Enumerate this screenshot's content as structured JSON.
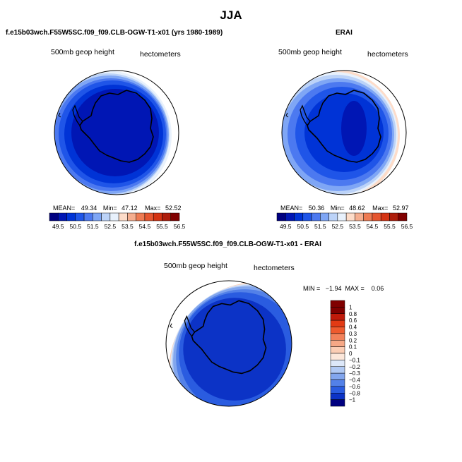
{
  "page": {
    "title": "JJA"
  },
  "colors": {
    "ramp": [
      "#000080",
      "#0016B4",
      "#0033D6",
      "#1F55E8",
      "#4C79F0",
      "#7FA6F5",
      "#BCD3F8",
      "#E8F1FC",
      "#FDDCC9",
      "#F5AE8F",
      "#EE7B53",
      "#E5552F",
      "#D43312",
      "#AE1D0B",
      "#800000"
    ],
    "coast": "#000000"
  },
  "panels": [
    {
      "id": "model",
      "title": "f.e15b03wch.F55W5SC.f09_f09.CLB-OGW-T1-x01 (yrs 1980-1989)",
      "variable": "500mb geop height",
      "units": "hectometers",
      "stats": {
        "mean_label": "MEAN=",
        "mean": "49.34",
        "min_label": "Min=",
        "min": "47.12",
        "max_label": "Max=",
        "max": "52.52"
      },
      "colorbar_labels": [
        "49.5",
        "50.5",
        "51.5",
        "52.5",
        "53.5",
        "54.5",
        "55.5",
        "56.5"
      ]
    },
    {
      "id": "obs",
      "title": "ERAI",
      "variable": "500mb geop height",
      "units": "hectometers",
      "stats": {
        "mean_label": "MEAN=",
        "mean": "50.36",
        "min_label": "Min=",
        "min": "48.62",
        "max_label": "Max=",
        "max": "52.97"
      },
      "colorbar_labels": [
        "49.5",
        "50.5",
        "51.5",
        "52.5",
        "53.5",
        "54.5",
        "55.5",
        "56.5"
      ]
    },
    {
      "id": "diff",
      "title": "f.e15b03wch.F55W5SC.f09_f09.CLB-OGW-T1-x01 - ERAI",
      "variable": "500mb geop height",
      "units": "hectometers",
      "stats_text": "MIN =   −1.94  MAX =    0.06",
      "colorbar_labels": [
        "1",
        "0.8",
        "0.6",
        "0.4",
        "0.3",
        "0.2",
        "0.1",
        "0",
        "−0.1",
        "−0.2",
        "−0.3",
        "−0.4",
        "−0.6",
        "−0.8",
        "−1"
      ],
      "colorbar_colors": [
        "#800000",
        "#C01A0A",
        "#E23A14",
        "#EE5A2E",
        "#F2815A",
        "#F6A886",
        "#FBCDB4",
        "#FCE7DA",
        "#DDE8F9",
        "#B0C9F4",
        "#82A6EE",
        "#5381E8",
        "#2A5CE0",
        "#0C33C6",
        "#000080"
      ]
    }
  ],
  "chart_data": [
    {
      "type": "heatmap",
      "title": "f.e15b03wch.F55W5SC.f09_f09.CLB-OGW-T1-x01 (yrs 1980-1989)",
      "projection": "polar-stereographic-south",
      "variable": "500mb geop height",
      "units": "hectometers",
      "mean": 49.34,
      "min": 47.12,
      "max": 52.52,
      "levels": [
        49,
        49.5,
        50,
        50.5,
        51,
        51.5,
        52,
        52.5,
        53,
        53.5,
        54,
        54.5,
        55,
        55.5,
        56,
        56.5
      ],
      "ring_values_center_to_edge": [
        49.0,
        49.5,
        50.0,
        50.5,
        51.0,
        51.5,
        52.0
      ]
    },
    {
      "type": "heatmap",
      "title": "ERAI",
      "projection": "polar-stereographic-south",
      "variable": "500mb geop height",
      "units": "hectometers",
      "mean": 50.36,
      "min": 48.62,
      "max": 52.97,
      "levels": [
        49,
        49.5,
        50,
        50.5,
        51,
        51.5,
        52,
        52.5,
        53,
        53.5,
        54,
        54.5,
        55,
        55.5,
        56,
        56.5
      ],
      "ring_values_center_to_edge": [
        49.0,
        49.5,
        50.0,
        50.5,
        51.0,
        51.5,
        52.0,
        52.5
      ]
    },
    {
      "type": "heatmap",
      "title": "f.e15b03wch.F55W5SC.f09_f09.CLB-OGW-T1-x01 - ERAI",
      "projection": "polar-stereographic-south",
      "variable": "500mb geop height",
      "units": "hectometers",
      "min": -1.94,
      "max": 0.06,
      "levels": [
        -1,
        -0.8,
        -0.6,
        -0.4,
        -0.3,
        -0.2,
        -0.1,
        0,
        0.1,
        0.2,
        0.3,
        0.4,
        0.6,
        0.8,
        1
      ],
      "ring_values_center_to_edge": [
        -1.0,
        -0.8,
        -0.6,
        -0.4,
        -0.3,
        -0.2,
        0.0
      ]
    }
  ]
}
